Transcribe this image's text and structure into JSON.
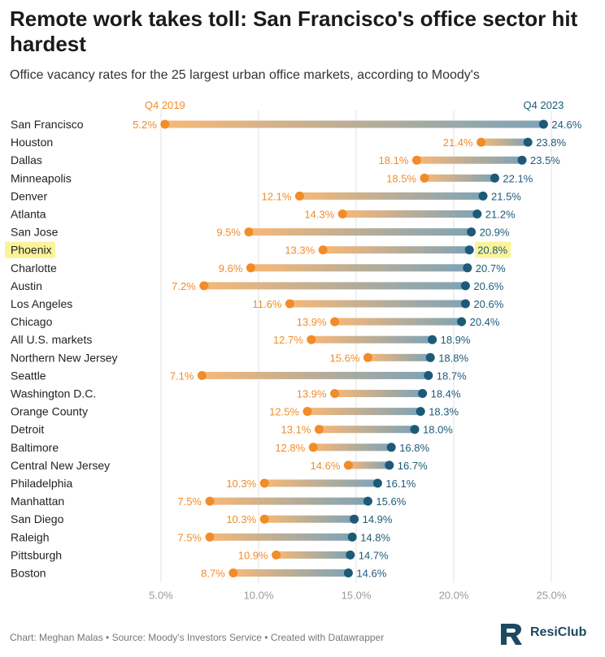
{
  "header": {
    "title": "Remote work takes toll: San Francisco's office sector hit hardest",
    "subtitle": "Office vacancy rates for the 25 largest urban office markets, according to Moody's"
  },
  "footer": {
    "credit": "Chart: Meghan Malas • Source: Moody's Investors Service • Created with Datawrapper",
    "logo_text": "ResiClub"
  },
  "colors": {
    "q4_2019": "#f28c28",
    "q4_2023": "#1d5a78",
    "highlight": "#fbf39a",
    "grid": "#e0e0e0",
    "axis_text": "#999999"
  },
  "chart_data": {
    "type": "dumbbell",
    "unit": "%",
    "highlight_category": "Phoenix",
    "xlim": [
      2.5,
      27.5
    ],
    "x_ticks": [
      5,
      10,
      15,
      20,
      25
    ],
    "x_tick_labels": [
      "5.0%",
      "10.0%",
      "15.0%",
      "20.0%",
      "25.0%"
    ],
    "grid": true,
    "series_labels": [
      "Q4 2019",
      "Q4 2023"
    ],
    "categories": [
      "San Francisco",
      "Houston",
      "Dallas",
      "Minneapolis",
      "Denver",
      "Atlanta",
      "San Jose",
      "Phoenix",
      "Charlotte",
      "Austin",
      "Los Angeles",
      "Chicago",
      "All U.S. markets",
      "Northern New Jersey",
      "Seattle",
      "Washington D.C.",
      "Orange County",
      "Detroit",
      "Baltimore",
      "Central New Jersey",
      "Philadelphia",
      "Manhattan",
      "San Diego",
      "Raleigh",
      "Pittsburgh",
      "Boston"
    ],
    "q4_2019": [
      5.2,
      21.4,
      18.1,
      18.5,
      12.1,
      14.3,
      9.5,
      13.3,
      9.6,
      7.2,
      11.6,
      13.9,
      12.7,
      15.6,
      7.1,
      13.9,
      12.5,
      13.1,
      12.8,
      14.6,
      10.3,
      7.5,
      10.3,
      7.5,
      10.9,
      8.7
    ],
    "q4_2023": [
      24.6,
      23.8,
      23.5,
      22.1,
      21.5,
      21.2,
      20.9,
      20.8,
      20.7,
      20.6,
      20.6,
      20.4,
      18.9,
      18.8,
      18.7,
      18.4,
      18.3,
      18.0,
      16.8,
      16.7,
      16.1,
      15.6,
      14.9,
      14.8,
      14.7,
      14.6
    ],
    "q4_2019_labels": [
      "5.2%",
      "21.4%",
      "18.1%",
      "18.5%",
      "12.1%",
      "14.3%",
      "9.5%",
      "13.3%",
      "9.6%",
      "7.2%",
      "11.6%",
      "13.9%",
      "12.7%",
      "15.6%",
      "7.1%",
      "13.9%",
      "12.5%",
      "13.1%",
      "12.8%",
      "14.6%",
      "10.3%",
      "7.5%",
      "10.3%",
      "7.5%",
      "10.9%",
      "8.7%"
    ],
    "q4_2023_labels": [
      "24.6%",
      "23.8%",
      "23.5%",
      "22.1%",
      "21.5%",
      "21.2%",
      "20.9%",
      "20.8%",
      "20.7%",
      "20.6%",
      "20.6%",
      "20.4%",
      "18.9%",
      "18.8%",
      "18.7%",
      "18.4%",
      "18.3%",
      "18.0%",
      "16.8%",
      "16.7%",
      "16.1%",
      "15.6%",
      "14.9%",
      "14.8%",
      "14.7%",
      "14.6%"
    ]
  }
}
